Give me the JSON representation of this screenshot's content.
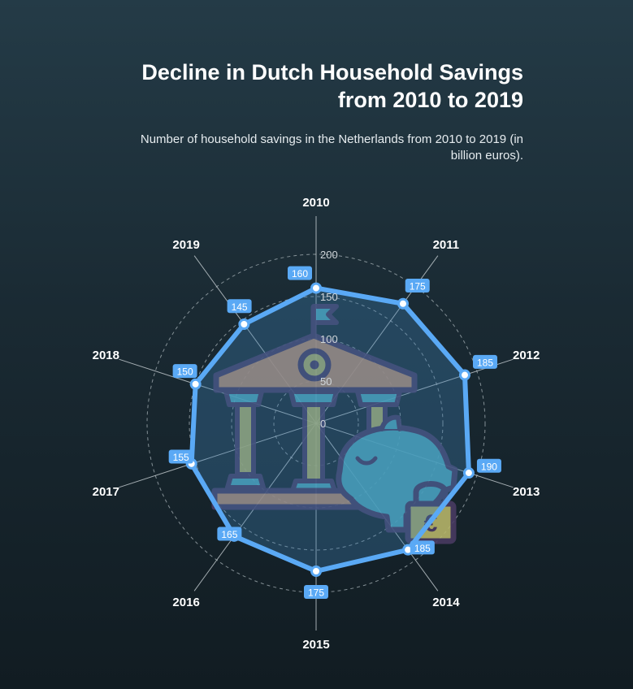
{
  "title": "Decline in Dutch Household Savings from 2010 to 2019",
  "subtitle": "Number of household savings in the Netherlands from 2010 to 2019 (in billion euros).",
  "colors": {
    "series": "#5aa9f5",
    "fill": "#3d7fb3",
    "label_bg": "#5aa9f5",
    "grid": "#a9b4ba",
    "icon_outline": "#4a3b63",
    "icon_roof": "#c6916f",
    "icon_pillar": "#b9b86a",
    "icon_teal": "#4fb0c2"
  },
  "icon": "bank-piggy-bank-icon",
  "chart_data": {
    "type": "radar",
    "title": "Decline in Dutch Household Savings from 2010 to 2019",
    "subtitle": "Number of household savings in the Netherlands from 2010 to 2019 (in billion euros).",
    "categories": [
      "2010",
      "2011",
      "2012",
      "2013",
      "2014",
      "2015",
      "2016",
      "2017",
      "2018",
      "2019"
    ],
    "values": [
      160,
      175,
      185,
      190,
      185,
      175,
      165,
      155,
      150,
      145
    ],
    "radial_ticks": [
      0,
      50,
      100,
      150,
      200
    ],
    "rlim": [
      0,
      200
    ],
    "grid": true,
    "legend": "none"
  }
}
